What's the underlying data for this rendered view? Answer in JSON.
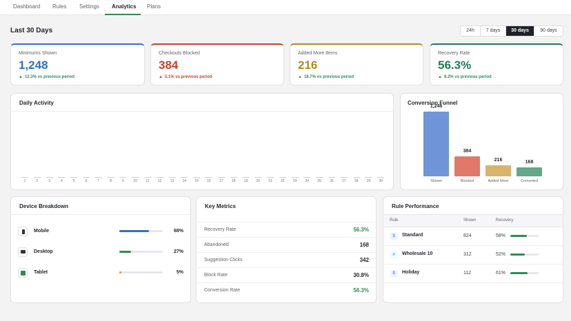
{
  "nav": {
    "tabs": [
      {
        "label": "Dashboard"
      },
      {
        "label": "Rules"
      },
      {
        "label": "Settings"
      },
      {
        "label": "Analytics",
        "active": true
      },
      {
        "label": "Plans"
      }
    ]
  },
  "header": {
    "title": "Last 30 Days",
    "ranges": [
      "24h",
      "7 days",
      "30 days",
      "90 days"
    ],
    "active_range": "30 days"
  },
  "kpis": [
    {
      "label": "Minimums Shown",
      "value": "1,248",
      "trend": "12.3% vs previous period",
      "direction": "up",
      "accent": "#2f6fc6",
      "trend_color": "#2e8b57"
    },
    {
      "label": "Checkouts Blocked",
      "value": "384",
      "trend": "5.1% vs previous period",
      "direction": "up",
      "accent": "#c9402c",
      "trend_color": "#c9402c"
    },
    {
      "label": "Added More Items",
      "value": "216",
      "trend": "18.7% vs previous period",
      "direction": "up",
      "accent": "#b08a1e",
      "trend_color": "#2e8b57"
    },
    {
      "label": "Recovery Rate",
      "value": "56.3%",
      "trend": "8.2% vs previous period",
      "direction": "up",
      "accent": "#1f7a54",
      "trend_color": "#2e8b57"
    }
  ],
  "daily_activity": {
    "title": "Daily Activity",
    "days": [
      "1",
      "2",
      "3",
      "4",
      "5",
      "6",
      "7",
      "8",
      "9",
      "10",
      "11",
      "12",
      "13",
      "14",
      "15",
      "16",
      "17",
      "18",
      "19",
      "20",
      "21",
      "22",
      "23",
      "24",
      "25",
      "26",
      "27",
      "28",
      "29",
      "30"
    ]
  },
  "funnel": {
    "title": "Conversion Funnel",
    "stages": [
      {
        "label": "Shown",
        "value": 1248,
        "display": "1,248",
        "color": "#6f95d8"
      },
      {
        "label": "Blocked",
        "value": 384,
        "display": "384",
        "color": "#e27868"
      },
      {
        "label": "Added More",
        "value": 216,
        "display": "216",
        "color": "#d8b46a"
      },
      {
        "label": "Converted",
        "value": 168,
        "display": "168",
        "color": "#62a88a"
      }
    ]
  },
  "devices": {
    "title": "Device Breakdown",
    "items": [
      {
        "name": "Mobile",
        "pct": "68%",
        "fraction": 0.68,
        "color": "#2f6fc6",
        "icon": "mobile-icon"
      },
      {
        "name": "Desktop",
        "pct": "27%",
        "fraction": 0.27,
        "color": "#2e8b57",
        "icon": "desktop-icon"
      },
      {
        "name": "Tablet",
        "pct": "5%",
        "fraction": 0.05,
        "color": "#d99a1e",
        "icon": "tablet-icon"
      }
    ]
  },
  "key_metrics": {
    "title": "Key Metrics",
    "items": [
      {
        "label": "Recovery Rate",
        "value": "56.3%",
        "color": "#2e8b57"
      },
      {
        "label": "Abandoned",
        "value": "168",
        "color": "#1f2328"
      },
      {
        "label": "Suggestion Clicks",
        "value": "342",
        "color": "#1f2328"
      },
      {
        "label": "Block Rate",
        "value": "30.8%",
        "color": "#1f2328"
      },
      {
        "label": "Conversion Rate",
        "value": "56.3%",
        "color": "#2e8b57"
      }
    ]
  },
  "rule_performance": {
    "title": "Rule Performance",
    "columns": [
      "Rule",
      "Shown",
      "Recovery"
    ],
    "rows": [
      {
        "icon": "$",
        "name": "Standard",
        "shown": "824",
        "recovery": "58%",
        "fraction": 0.58
      },
      {
        "icon": "#",
        "name": "Wholesale 10",
        "shown": "312",
        "recovery": "52%",
        "fraction": 0.52
      },
      {
        "icon": "$",
        "name": "Holiday",
        "shown": "112",
        "recovery": "61%",
        "fraction": 0.61
      }
    ]
  }
}
